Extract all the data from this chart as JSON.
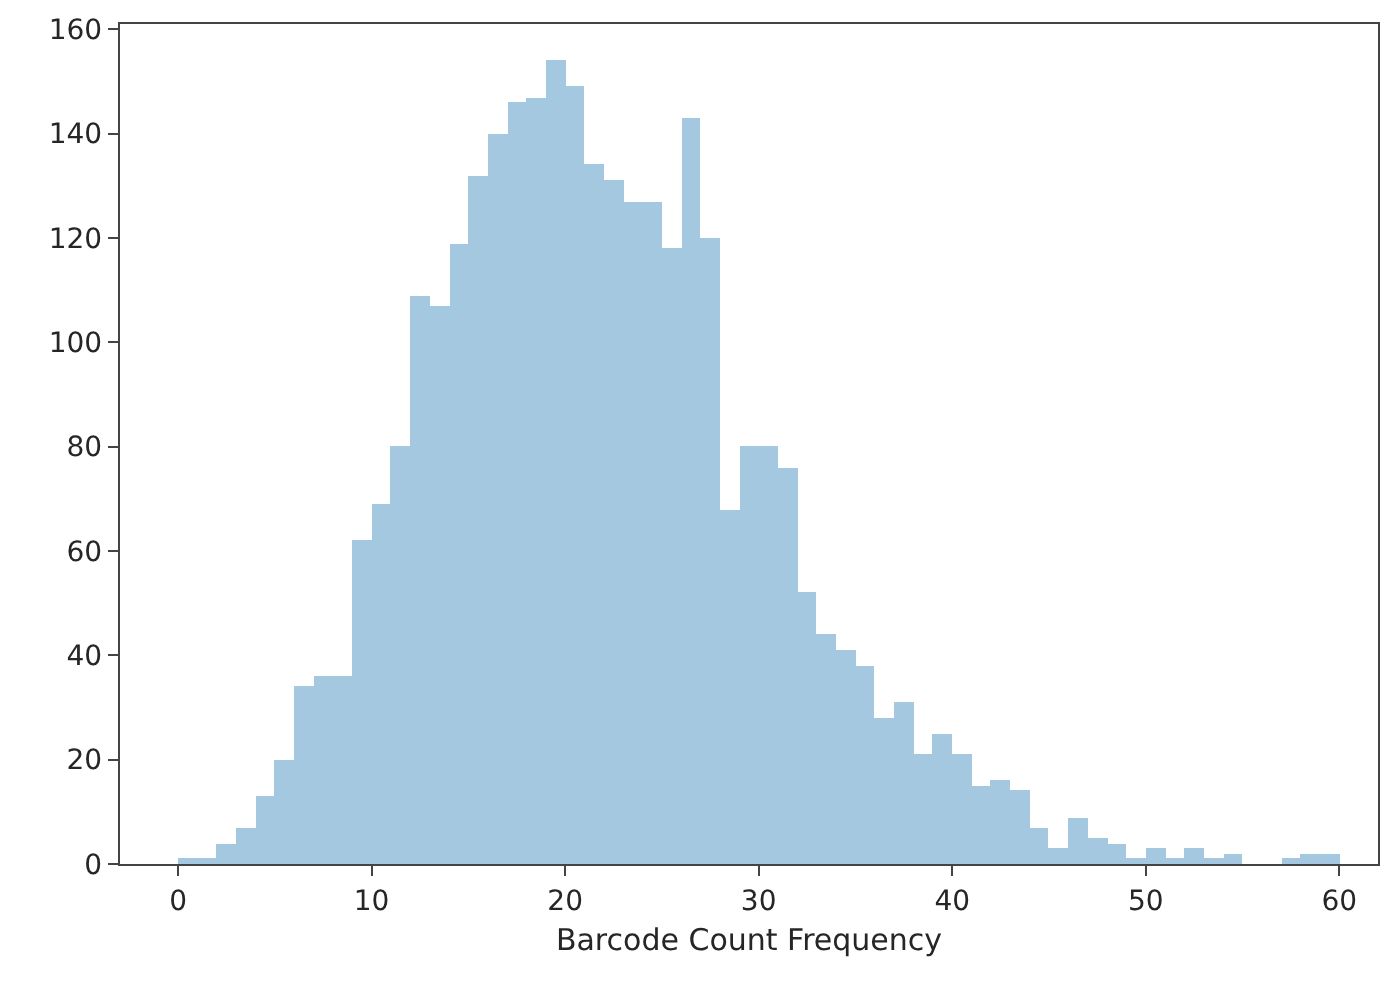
{
  "chart_data": {
    "type": "histogram",
    "xlabel": "Barcode Count Frequency",
    "bins": [
      0,
      1,
      2,
      3,
      4,
      5,
      6,
      7,
      8,
      9,
      10,
      11,
      12,
      13,
      14,
      15,
      16,
      17,
      18,
      19,
      20,
      21,
      22,
      23,
      24,
      25,
      26,
      27,
      28,
      29,
      30,
      31,
      32,
      33,
      34,
      35,
      36,
      37,
      38,
      39,
      40,
      41,
      42,
      43,
      44,
      45,
      46,
      47,
      48,
      49,
      50,
      51,
      52,
      53,
      54,
      55,
      56,
      57,
      58,
      59,
      60
    ],
    "values": [
      1,
      1,
      4,
      7,
      13,
      20,
      34,
      36,
      36,
      62,
      69,
      80,
      109,
      107,
      119,
      132,
      140,
      146,
      147,
      154,
      149,
      134,
      131,
      127,
      127,
      118,
      143,
      120,
      68,
      80,
      80,
      76,
      52,
      44,
      41,
      38,
      28,
      31,
      21,
      25,
      21,
      15,
      16,
      14,
      7,
      3,
      9,
      5,
      4,
      1,
      3,
      1,
      3,
      1,
      2,
      0,
      0,
      1,
      2,
      2
    ],
    "color": "#a5c8e1",
    "xlim": [
      -3,
      62
    ],
    "xticks": [
      0,
      10,
      20,
      30,
      40,
      50,
      60
    ],
    "ylim": [
      0,
      161
    ],
    "yticks": [
      0,
      20,
      40,
      60,
      80,
      100,
      120,
      140,
      160
    ]
  }
}
